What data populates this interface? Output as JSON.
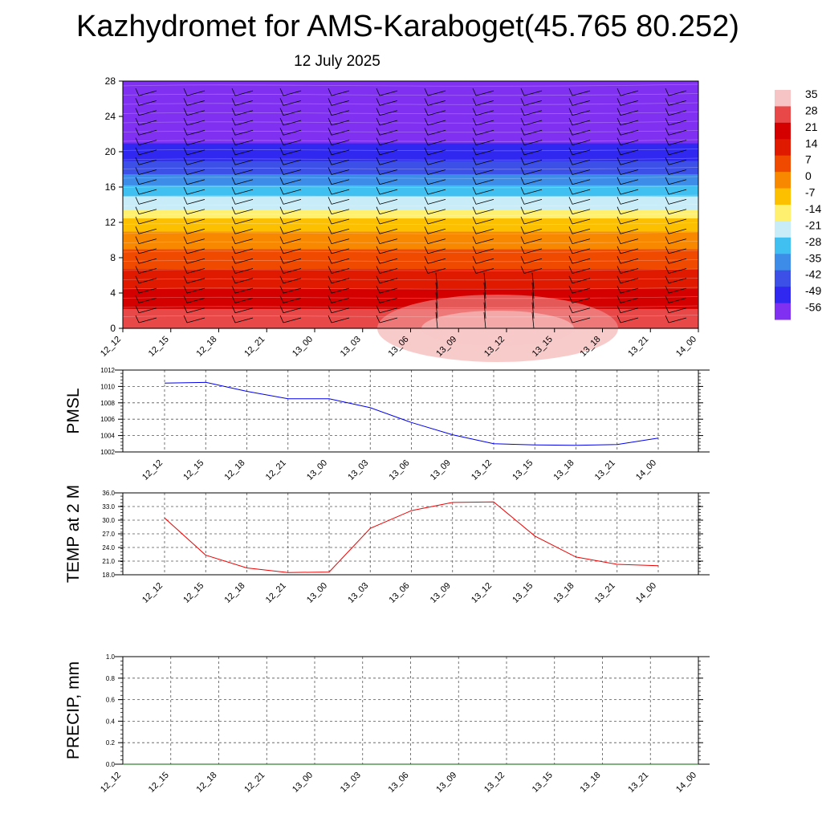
{
  "header": {
    "title": "Kazhydromet for AMS-Karaboget(45.765 80.252)",
    "date": "12 July 2025"
  },
  "chart_data": [
    {
      "type": "heatmap",
      "title": "",
      "x_ticks": [
        "12_12",
        "12_15",
        "12_18",
        "12_21",
        "13_00",
        "13_03",
        "13_06",
        "13_09",
        "13_12",
        "13_15",
        "13_18",
        "13_21",
        "14_00"
      ],
      "y_ticks": [
        "0",
        "4",
        "8",
        "12",
        "16",
        "20",
        "24",
        "28"
      ],
      "ylim": [
        0,
        28
      ],
      "colorbar": {
        "labels": [
          "35",
          "28",
          "21",
          "14",
          "7",
          "0",
          "-7",
          "-14",
          "-21",
          "-28",
          "-35",
          "-42",
          "-49",
          "-56"
        ],
        "colors": [
          "#f6c4c4",
          "#e84848",
          "#d40000",
          "#e01a00",
          "#f04a00",
          "#f88800",
          "#fcc000",
          "#fff070",
          "#c8ecf8",
          "#40c0f0",
          "#3c8ce8",
          "#3c50e8",
          "#3028f0",
          "#8030f0"
        ]
      },
      "temperature_profile": {
        "heights": [
          0,
          3,
          6,
          9,
          12,
          13,
          14.5,
          16,
          18,
          20,
          22,
          24,
          26,
          28
        ],
        "values": [
          34,
          26,
          16,
          7,
          -3,
          -12,
          -18,
          -27,
          -38,
          -47,
          -51,
          -54,
          -57,
          -59
        ]
      },
      "wind_barbs": true
    },
    {
      "type": "line",
      "ylabel": "PMSL",
      "categories": [
        "12_12",
        "12_15",
        "12_18",
        "12_21",
        "13_00",
        "13_03",
        "13_06",
        "13_09",
        "13_12",
        "13_15",
        "13_18",
        "13_21",
        "14_00"
      ],
      "y_ticks": [
        "1002",
        "1004",
        "1006",
        "1008",
        "1010",
        "1012"
      ],
      "ylim": [
        1002,
        1012
      ],
      "color": "#0000ee",
      "series": [
        {
          "values": [
            1010.4,
            1010.5,
            1009.4,
            1008.5,
            1008.5,
            1007.4,
            1005.6,
            1004.1,
            1003.0,
            1002.85,
            1002.8,
            1002.9,
            1003.7
          ]
        }
      ]
    },
    {
      "type": "line",
      "ylabel": "TEMP at 2 M",
      "categories": [
        "12_12",
        "12_15",
        "12_18",
        "12_21",
        "13_00",
        "13_03",
        "13_06",
        "13_09",
        "13_12",
        "13_15",
        "13_18",
        "13_21",
        "14_00"
      ],
      "y_ticks": [
        "18.0",
        "21.0",
        "24.0",
        "27.0",
        "30.0",
        "33.0",
        "36.0"
      ],
      "ylim": [
        18,
        36
      ],
      "color": "#ee0000",
      "series": [
        {
          "values": [
            30.5,
            22.3,
            19.5,
            18.5,
            18.6,
            28.2,
            32.1,
            33.9,
            34.0,
            26.5,
            21.9,
            20.3,
            20.0
          ]
        }
      ]
    },
    {
      "type": "line",
      "ylabel": "PRECIP, mm",
      "categories": [
        "12_12",
        "12_15",
        "12_18",
        "12_21",
        "13_00",
        "13_03",
        "13_06",
        "13_09",
        "13_12",
        "13_15",
        "13_18",
        "13_21",
        "14_00"
      ],
      "y_ticks": [
        "0.0",
        "0.2",
        "0.4",
        "0.6",
        "0.8",
        "1.0"
      ],
      "ylim": [
        0,
        1
      ],
      "color": "#006400",
      "series": [
        {
          "values": [
            0,
            0,
            0,
            0,
            0,
            0,
            0,
            0,
            0,
            0,
            0,
            0,
            0
          ]
        }
      ]
    }
  ]
}
